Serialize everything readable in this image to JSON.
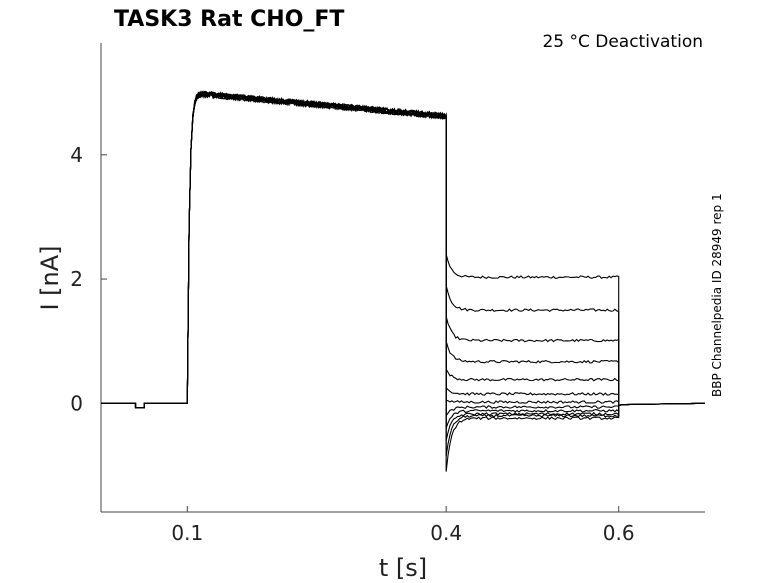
{
  "chart_data": {
    "type": "line",
    "title": "TASK3  Rat  CHO_FT",
    "subtitle": "25 °C  Deactivation",
    "side_note": "BBP Channelpedia ID 28949 rep 1",
    "xlabel": "t [s]",
    "ylabel": "I [nA]",
    "xlim": [
      0.0,
      0.7
    ],
    "ylim": [
      -1.75,
      5.8
    ],
    "x_ticks": [
      0.1,
      0.4,
      0.6
    ],
    "x_tick_labels": [
      "0.1",
      "0.4",
      "0.6"
    ],
    "y_ticks": [
      0,
      2,
      4
    ],
    "y_tick_labels": [
      "0",
      "2",
      "4"
    ],
    "grid": false,
    "legend": "none",
    "line_color": "#000000",
    "protocol": {
      "baseline": 0.0,
      "prepulse_dip": {
        "start": 0.04,
        "end": 0.05,
        "value": -0.07
      },
      "activation_start": 0.1,
      "activation_peak": 5.0,
      "activation_end_level": 4.62,
      "step_start": 0.4,
      "step_end": 0.6
    },
    "series": [
      {
        "values": [
          [
            0.4,
            2.4
          ],
          [
            0.402,
            2.35
          ],
          [
            0.41,
            2.15
          ],
          [
            0.44,
            2.06
          ],
          [
            0.6,
            2.03
          ],
          [
            0.6,
            -0.03
          ]
        ]
      },
      {
        "values": [
          [
            0.4,
            1.9
          ],
          [
            0.403,
            1.78
          ],
          [
            0.41,
            1.6
          ],
          [
            0.44,
            1.52
          ],
          [
            0.6,
            1.5
          ],
          [
            0.6,
            -0.03
          ]
        ]
      },
      {
        "values": [
          [
            0.4,
            1.4
          ],
          [
            0.403,
            1.27
          ],
          [
            0.41,
            1.1
          ],
          [
            0.44,
            1.03
          ],
          [
            0.6,
            1.01
          ],
          [
            0.6,
            -0.03
          ]
        ]
      },
      {
        "values": [
          [
            0.4,
            1.0
          ],
          [
            0.403,
            0.86
          ],
          [
            0.41,
            0.72
          ],
          [
            0.44,
            0.68
          ],
          [
            0.6,
            0.67
          ],
          [
            0.6,
            -0.03
          ]
        ]
      },
      {
        "values": [
          [
            0.4,
            0.55
          ],
          [
            0.403,
            0.45
          ],
          [
            0.41,
            0.39
          ],
          [
            0.44,
            0.38
          ],
          [
            0.6,
            0.38
          ],
          [
            0.6,
            -0.03
          ]
        ]
      },
      {
        "values": [
          [
            0.4,
            0.25
          ],
          [
            0.403,
            0.18
          ],
          [
            0.41,
            0.15
          ],
          [
            0.44,
            0.15
          ],
          [
            0.6,
            0.15
          ],
          [
            0.6,
            -0.03
          ]
        ]
      },
      {
        "values": [
          [
            0.4,
            0.05
          ],
          [
            0.403,
            0.02
          ],
          [
            0.41,
            0.02
          ],
          [
            0.44,
            0.02
          ],
          [
            0.6,
            0.02
          ],
          [
            0.6,
            -0.03
          ]
        ]
      },
      {
        "values": [
          [
            0.4,
            -0.2
          ],
          [
            0.403,
            -0.12
          ],
          [
            0.41,
            -0.08
          ],
          [
            0.44,
            -0.07
          ],
          [
            0.6,
            -0.06
          ],
          [
            0.6,
            -0.03
          ]
        ]
      },
      {
        "values": [
          [
            0.4,
            -0.4
          ],
          [
            0.403,
            -0.25
          ],
          [
            0.41,
            -0.15
          ],
          [
            0.44,
            -0.13
          ],
          [
            0.6,
            -0.12
          ],
          [
            0.6,
            -0.03
          ]
        ]
      },
      {
        "values": [
          [
            0.4,
            -0.6
          ],
          [
            0.403,
            -0.38
          ],
          [
            0.41,
            -0.22
          ],
          [
            0.44,
            -0.18
          ],
          [
            0.6,
            -0.17
          ],
          [
            0.6,
            -0.03
          ]
        ]
      },
      {
        "values": [
          [
            0.4,
            -0.85
          ],
          [
            0.403,
            -0.5
          ],
          [
            0.41,
            -0.3
          ],
          [
            0.44,
            -0.23
          ],
          [
            0.6,
            -0.2
          ],
          [
            0.6,
            -0.03
          ]
        ]
      },
      {
        "values": [
          [
            0.4,
            -1.1
          ],
          [
            0.403,
            -0.62
          ],
          [
            0.41,
            -0.38
          ],
          [
            0.44,
            -0.27
          ],
          [
            0.6,
            -0.24
          ],
          [
            0.6,
            -0.03
          ]
        ]
      }
    ]
  }
}
